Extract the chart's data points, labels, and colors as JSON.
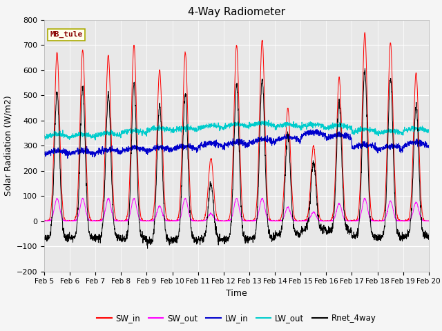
{
  "title": "4-Way Radiometer",
  "xlabel": "Time",
  "ylabel": "Solar Radiation (W/m2)",
  "station_label": "MB_tule",
  "ylim": [
    -200,
    800
  ],
  "yticks": [
    -200,
    -100,
    0,
    100,
    200,
    300,
    400,
    500,
    600,
    700,
    800
  ],
  "date_labels": [
    "Feb 5",
    "Feb 6",
    "Feb 7",
    "Feb 8",
    "Feb 9",
    "Feb 10",
    "Feb 11",
    "Feb 12",
    "Feb 13",
    "Feb 14",
    "Feb 15",
    "Feb 16",
    "Feb 17",
    "Feb 18",
    "Feb 19",
    "Feb 20"
  ],
  "SW_in_peaks": [
    670,
    680,
    660,
    700,
    600,
    670,
    250,
    700,
    720,
    450,
    300,
    570,
    750,
    710,
    590
  ],
  "SW_out_peaks": [
    90,
    90,
    90,
    90,
    60,
    90,
    30,
    90,
    90,
    55,
    35,
    70,
    90,
    80,
    75
  ],
  "LW_in_base": [
    265,
    265,
    270,
    275,
    278,
    283,
    295,
    300,
    310,
    318,
    340,
    328,
    288,
    283,
    298
  ],
  "LW_out_base": [
    333,
    333,
    338,
    348,
    358,
    358,
    368,
    373,
    378,
    373,
    372,
    368,
    353,
    348,
    358
  ],
  "colors": {
    "SW_in": "#ff0000",
    "SW_out": "#ff00ff",
    "LW_in": "#0000cc",
    "LW_out": "#00cccc",
    "Rnet_4way": "#000000"
  },
  "fig_bg": "#f5f5f5",
  "plot_bg": "#e8e8e8"
}
